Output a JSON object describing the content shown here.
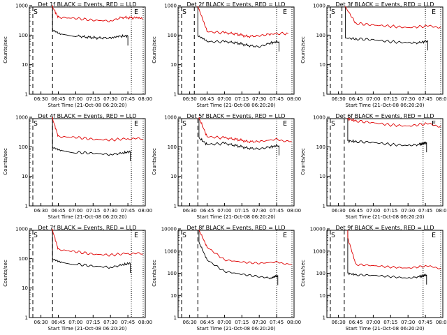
{
  "colors": {
    "events": "#000000",
    "lld": "#e00000",
    "background": "#ffffff"
  },
  "chart_data": [
    {
      "type": "line",
      "title": "Det 1f BLACK = Events, RED = LLD",
      "xlabel": "Start Time (21-Oct-08 06:20:20)",
      "ylabel": "Counts/sec",
      "yscale": "log",
      "ylim": [
        1,
        1000
      ],
      "y_ticks": [
        "1",
        "10",
        "100",
        "1000"
      ],
      "xlim": [
        "06:20",
        "08:00"
      ],
      "x_ticks": [
        "06:30",
        "06:45",
        "07:00",
        "07:15",
        "07:30",
        "07:45",
        "08:00"
      ],
      "markers": {
        "start_label": "S",
        "end_label": "E",
        "dashed_line_x": "06:40",
        "dotted_line_x": "07:48"
      },
      "series": [
        {
          "name": "Events",
          "x": [
            "06:40",
            "06:48",
            "07:00",
            "07:10",
            "07:20",
            "07:30",
            "07:38",
            "07:45"
          ],
          "values": [
            140,
            100,
            95,
            85,
            80,
            80,
            90,
            95
          ]
        },
        {
          "name": "LLD",
          "x": [
            "06:40",
            "06:45",
            "07:00",
            "07:15",
            "07:30",
            "07:40",
            "07:50",
            "07:58"
          ],
          "values": [
            900,
            400,
            370,
            320,
            300,
            400,
            380,
            350
          ]
        }
      ]
    },
    {
      "type": "line",
      "title": "Det 2f BLACK = Events, RED = LLD",
      "xlabel": "Start Time (21-Oct-08 06:20:20)",
      "ylabel": "Counts/sec",
      "yscale": "log",
      "ylim": [
        1,
        1000
      ],
      "y_ticks": [
        "1",
        "10",
        "100",
        "1000"
      ],
      "xlim": [
        "06:20",
        "08:00"
      ],
      "x_ticks": [
        "06:30",
        "06:45",
        "07:00",
        "07:15",
        "07:30",
        "07:45",
        "08:00"
      ],
      "markers": {
        "start_label": "S",
        "end_label": "E",
        "dashed_line_x": "06:34",
        "dotted_line_x": "07:45"
      },
      "series": [
        {
          "name": "Events",
          "x": [
            "06:37",
            "06:45",
            "07:00",
            "07:10",
            "07:20",
            "07:30",
            "07:40",
            "07:47"
          ],
          "values": [
            90,
            60,
            60,
            55,
            45,
            40,
            55,
            60
          ]
        },
        {
          "name": "LLD",
          "x": [
            "06:37",
            "06:45",
            "07:00",
            "07:10",
            "07:20",
            "07:30",
            "07:40",
            "07:55"
          ],
          "values": [
            900,
            130,
            120,
            110,
            90,
            95,
            110,
            115
          ]
        }
      ]
    },
    {
      "type": "line",
      "title": "Det 3f BLACK = Events, RED = LLD",
      "xlabel": "Start Time (21-Oct-08 06:20:20)",
      "ylabel": "Counts/sec",
      "yscale": "log",
      "ylim": [
        1,
        1000
      ],
      "y_ticks": [
        "1",
        "10",
        "100",
        "1000"
      ],
      "xlim": [
        "06:20",
        "08:00"
      ],
      "x_ticks": [
        "06:30",
        "06:45",
        "07:00",
        "07:15",
        "07:30",
        "07:45",
        "08:00"
      ],
      "markers": {
        "start_label": "S",
        "end_label": "E",
        "dashed_line_x": "06:33",
        "dotted_line_x": "07:45"
      },
      "series": [
        {
          "name": "Events",
          "x": [
            "06:36",
            "06:45",
            "07:00",
            "07:15",
            "07:30",
            "07:40",
            "07:47"
          ],
          "values": [
            80,
            75,
            70,
            60,
            55,
            55,
            65
          ]
        },
        {
          "name": "LLD",
          "x": [
            "06:36",
            "06:45",
            "07:00",
            "07:15",
            "07:30",
            "07:45",
            "07:58"
          ],
          "values": [
            900,
            250,
            220,
            200,
            180,
            200,
            190
          ]
        }
      ]
    },
    {
      "type": "line",
      "title": "Det 4f BLACK = Events, RED = LLD",
      "xlabel": "Start Time (21-Oct-08 06:20:20)",
      "ylabel": "Counts/sec",
      "yscale": "log",
      "ylim": [
        1,
        1000
      ],
      "y_ticks": [
        "1",
        "10",
        "100",
        "1000"
      ],
      "xlim": [
        "06:20",
        "08:00"
      ],
      "x_ticks": [
        "06:30",
        "06:45",
        "07:00",
        "07:15",
        "07:30",
        "07:45",
        "08:00"
      ],
      "markers": {
        "start_label": "S",
        "end_label": "E",
        "dashed_line_x": "06:40",
        "dotted_line_x": "07:48"
      },
      "series": [
        {
          "name": "Events",
          "x": [
            "06:40",
            "06:48",
            "07:00",
            "07:15",
            "07:30",
            "07:40",
            "07:47"
          ],
          "values": [
            90,
            70,
            65,
            60,
            55,
            60,
            70
          ]
        },
        {
          "name": "LLD",
          "x": [
            "06:40",
            "06:45",
            "07:00",
            "07:15",
            "07:30",
            "07:45",
            "07:58"
          ],
          "values": [
            900,
            220,
            210,
            180,
            170,
            190,
            180
          ]
        }
      ]
    },
    {
      "type": "line",
      "title": "Det 5f BLACK = Events, RED = LLD",
      "xlabel": "Start Time (21-Oct-08 06:20:20)",
      "ylabel": "Counts/sec",
      "yscale": "log",
      "ylim": [
        1,
        1000
      ],
      "y_ticks": [
        "1",
        "10",
        "100",
        "1000"
      ],
      "xlim": [
        "06:20",
        "08:00"
      ],
      "x_ticks": [
        "06:30",
        "06:45",
        "07:00",
        "07:15",
        "07:30",
        "07:45",
        "08:00"
      ],
      "markers": {
        "start_label": "S",
        "end_label": "E",
        "dashed_line_x": "06:37",
        "dotted_line_x": "07:45"
      },
      "series": [
        {
          "name": "Events",
          "x": [
            "06:38",
            "06:45",
            "07:00",
            "07:10",
            "07:20",
            "07:30",
            "07:40",
            "07:47"
          ],
          "values": [
            200,
            120,
            130,
            110,
            90,
            85,
            100,
            110
          ]
        },
        {
          "name": "LLD",
          "x": [
            "06:38",
            "06:45",
            "07:00",
            "07:10",
            "07:20",
            "07:30",
            "07:45",
            "07:58"
          ],
          "values": [
            950,
            220,
            200,
            180,
            150,
            150,
            180,
            150
          ]
        }
      ]
    },
    {
      "type": "line",
      "title": "Det 6f BLACK = Events, RED = LLD",
      "xlabel": "Start Time (21-Oct-08 06:20:20)",
      "ylabel": "Counts/sec",
      "yscale": "log",
      "ylim": [
        1,
        1000
      ],
      "y_ticks": [
        "1",
        "10",
        "100",
        "1000"
      ],
      "xlim": [
        "06:20",
        "08:00"
      ],
      "x_ticks": [
        "06:30",
        "06:45",
        "07:00",
        "07:15",
        "07:30",
        "07:45",
        "08:00"
      ],
      "markers": {
        "start_label": "S",
        "end_label": "E",
        "dashed_line_x": "06:35",
        "dotted_line_x": "07:43"
      },
      "series": [
        {
          "name": "Events",
          "x": [
            "06:38",
            "06:45",
            "07:00",
            "07:15",
            "07:30",
            "07:40",
            "07:46"
          ],
          "values": [
            160,
            150,
            140,
            120,
            110,
            120,
            140
          ]
        },
        {
          "name": "LLD",
          "x": [
            "06:38",
            "06:45",
            "07:00",
            "07:15",
            "07:30",
            "07:45",
            "07:58"
          ],
          "values": [
            900,
            750,
            650,
            550,
            500,
            600,
            500
          ]
        }
      ]
    },
    {
      "type": "line",
      "title": "Det 7f BLACK = Events, RED = LLD",
      "xlabel": "Start Time (21-Oct-08 06:20:20)",
      "ylabel": "Counts/sec",
      "yscale": "log",
      "ylim": [
        1,
        1000
      ],
      "y_ticks": [
        "1",
        "10",
        "100",
        "1000"
      ],
      "xlim": [
        "06:20",
        "08:00"
      ],
      "x_ticks": [
        "06:30",
        "06:45",
        "07:00",
        "07:15",
        "07:30",
        "07:45",
        "08:00"
      ],
      "markers": {
        "start_label": "S",
        "end_label": "E",
        "dashed_line_x": "06:40",
        "dotted_line_x": "07:48"
      },
      "series": [
        {
          "name": "Events",
          "x": [
            "06:40",
            "06:48",
            "07:00",
            "07:15",
            "07:30",
            "07:40",
            "07:47"
          ],
          "values": [
            90,
            70,
            65,
            55,
            50,
            60,
            70
          ]
        },
        {
          "name": "LLD",
          "x": [
            "06:40",
            "06:45",
            "07:00",
            "07:15",
            "07:30",
            "07:45",
            "07:58"
          ],
          "values": [
            900,
            200,
            170,
            140,
            130,
            150,
            140
          ]
        }
      ]
    },
    {
      "type": "line",
      "title": "Det 8f BLACK = Events, RED = LLD",
      "xlabel": "Start Time (21-Oct-08 06:20:20)",
      "ylabel": "Counts/sec",
      "yscale": "log",
      "ylim": [
        1,
        10000
      ],
      "y_ticks": [
        "1",
        "10",
        "100",
        "1000",
        "10000"
      ],
      "xlim": [
        "06:20",
        "08:00"
      ],
      "x_ticks": [
        "06:30",
        "06:45",
        "07:00",
        "07:15",
        "07:30",
        "07:45",
        "08:00"
      ],
      "markers": {
        "start_label": "S",
        "end_label": "E",
        "dashed_line_x": "06:37",
        "dotted_line_x": "07:45"
      },
      "series": [
        {
          "name": "Events",
          "x": [
            "06:38",
            "06:45",
            "07:00",
            "07:15",
            "07:30",
            "07:40",
            "07:46"
          ],
          "values": [
            2500,
            400,
            120,
            90,
            70,
            60,
            80
          ]
        },
        {
          "name": "LLD",
          "x": [
            "06:38",
            "06:45",
            "07:00",
            "07:15",
            "07:30",
            "07:45",
            "07:58"
          ],
          "values": [
            9000,
            1500,
            400,
            320,
            280,
            320,
            250
          ]
        }
      ]
    },
    {
      "type": "line",
      "title": "Det 9f BLACK = Events, RED = LLD",
      "xlabel": "Start Time (21-Oct-08 06:20:20)",
      "ylabel": "Counts/sec",
      "yscale": "log",
      "ylim": [
        1,
        10000
      ],
      "y_ticks": [
        "1",
        "10",
        "100",
        "1000",
        "10000"
      ],
      "xlim": [
        "06:20",
        "08:00"
      ],
      "x_ticks": [
        "06:30",
        "06:45",
        "07:00",
        "07:15",
        "07:30",
        "07:45",
        "08:00"
      ],
      "markers": {
        "start_label": "S",
        "end_label": "E",
        "dashed_line_x": "06:35",
        "dotted_line_x": "07:43"
      },
      "series": [
        {
          "name": "Events",
          "x": [
            "06:38",
            "06:45",
            "07:00",
            "07:15",
            "07:30",
            "07:40",
            "07:46"
          ],
          "values": [
            100,
            85,
            80,
            70,
            60,
            70,
            85
          ]
        },
        {
          "name": "LLD",
          "x": [
            "06:38",
            "06:45",
            "07:00",
            "07:15",
            "07:30",
            "07:45",
            "07:58"
          ],
          "values": [
            4000,
            250,
            220,
            190,
            170,
            210,
            170
          ]
        }
      ]
    }
  ]
}
